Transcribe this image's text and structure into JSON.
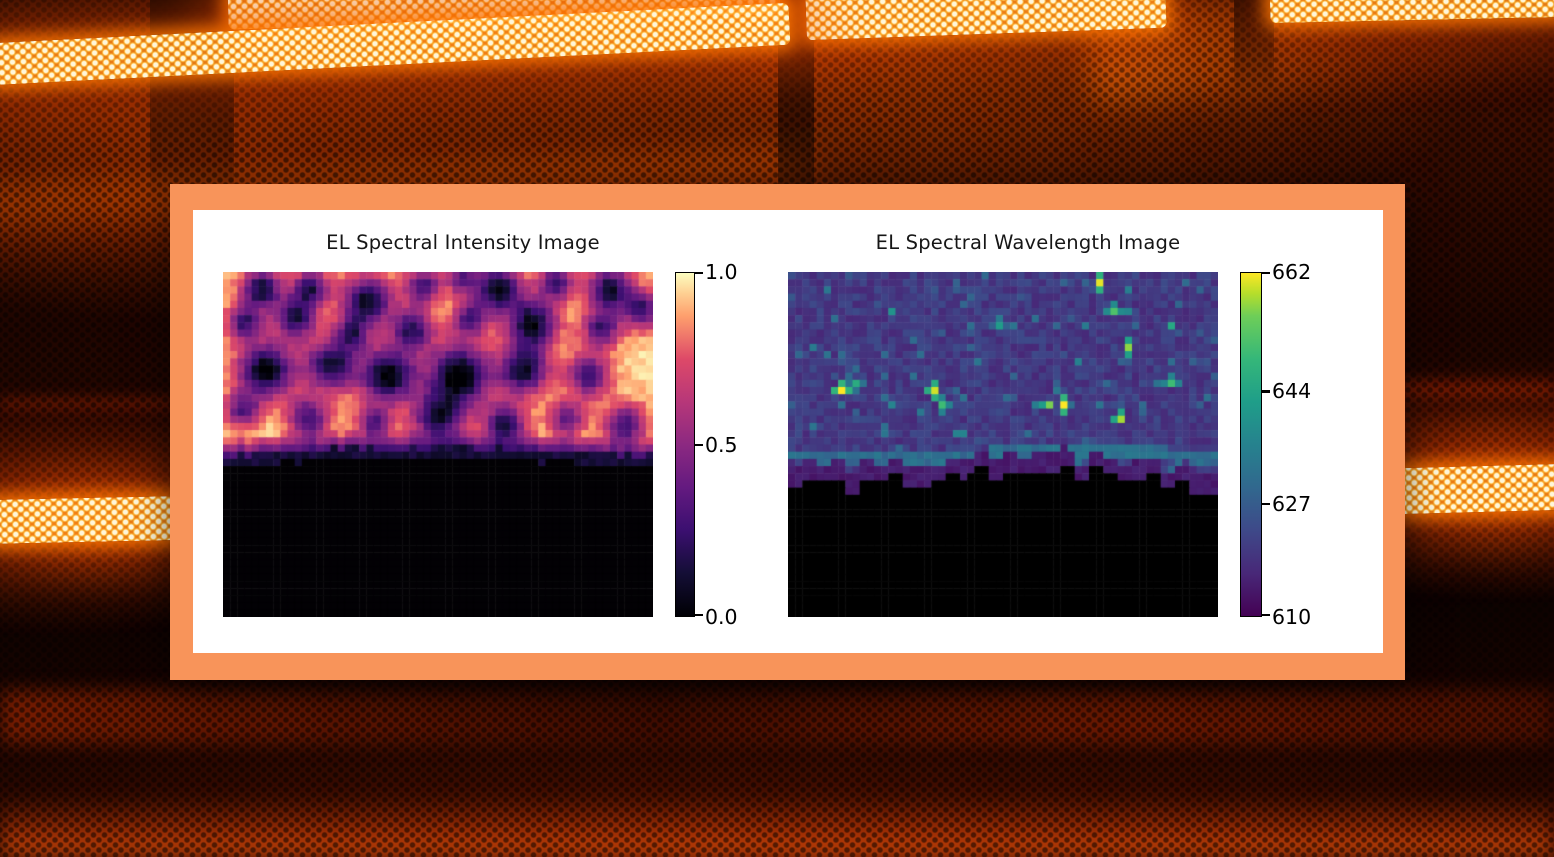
{
  "panel": {
    "frame_color": "#f8945a",
    "background_color": "#ffffff"
  },
  "figure": {
    "title_color": "#161616",
    "tick_label_color": "#000000"
  },
  "background": {
    "base_color": "#160300",
    "glow_color": "#ff6a00",
    "hot_core_color": "#fff6da",
    "dim_red_color": "#8a1a00"
  },
  "colormaps": {
    "magma": [
      [
        0,
        "#000004"
      ],
      [
        0.125,
        "#140e36"
      ],
      [
        0.25,
        "#3b0f70"
      ],
      [
        0.375,
        "#641a80"
      ],
      [
        0.5,
        "#8c2981"
      ],
      [
        0.625,
        "#b73779"
      ],
      [
        0.75,
        "#de4968"
      ],
      [
        0.875,
        "#fe9f6d"
      ],
      [
        0.94,
        "#fecf92"
      ],
      [
        1,
        "#fcfdbf"
      ]
    ],
    "viridis": [
      [
        0,
        "#440154"
      ],
      [
        0.125,
        "#482878"
      ],
      [
        0.25,
        "#3e4989"
      ],
      [
        0.375,
        "#31688e"
      ],
      [
        0.5,
        "#26828e"
      ],
      [
        0.625,
        "#1f9e89"
      ],
      [
        0.75,
        "#35b779"
      ],
      [
        0.875,
        "#6ece58"
      ],
      [
        0.94,
        "#b5de2b"
      ],
      [
        1,
        "#fde725"
      ]
    ]
  },
  "chart_data": [
    {
      "type": "heatmap",
      "title": "EL Spectral Intensity Image",
      "colormap": "magma",
      "vmin": 0.0,
      "vmax": 1.0,
      "colorbar": {
        "ticks": [
          {
            "label": "1.0",
            "value": 1.0
          },
          {
            "label": "0.5",
            "value": 0.5
          },
          {
            "label": "0.0",
            "value": 0.0
          }
        ]
      },
      "grid": {
        "cols": 60,
        "rows": 48
      },
      "seed": 11,
      "base": 0.94,
      "noise": 0.05,
      "fade_zone": 0.055,
      "under_band": {
        "zone": 0.032,
        "value": 0.13
      },
      "boundary": {
        "type": "wavy",
        "base": 0.525,
        "amp": 0.018
      },
      "masked_color": "#020104",
      "dark_blobs": [
        {
          "x": 0.09,
          "y": 0.05,
          "r": 0.032,
          "d": 0.85
        },
        {
          "x": 0.205,
          "y": 0.045,
          "r": 0.028,
          "d": 0.75
        },
        {
          "x": 0.335,
          "y": 0.085,
          "r": 0.04,
          "d": 0.9
        },
        {
          "x": 0.465,
          "y": 0.04,
          "r": 0.028,
          "d": 0.7
        },
        {
          "x": 0.555,
          "y": 0.02,
          "r": 0.024,
          "d": 0.6
        },
        {
          "x": 0.64,
          "y": 0.05,
          "r": 0.038,
          "d": 0.9
        },
        {
          "x": 0.775,
          "y": 0.03,
          "r": 0.028,
          "d": 0.7
        },
        {
          "x": 0.9,
          "y": 0.05,
          "r": 0.035,
          "d": 0.85
        },
        {
          "x": 0.975,
          "y": 0.11,
          "r": 0.03,
          "d": 0.7
        },
        {
          "x": 0.05,
          "y": 0.145,
          "r": 0.028,
          "d": 0.7
        },
        {
          "x": 0.17,
          "y": 0.13,
          "r": 0.034,
          "d": 0.8
        },
        {
          "x": 0.3,
          "y": 0.18,
          "r": 0.028,
          "d": 0.6
        },
        {
          "x": 0.44,
          "y": 0.165,
          "r": 0.034,
          "d": 0.75
        },
        {
          "x": 0.575,
          "y": 0.135,
          "r": 0.028,
          "d": 0.65
        },
        {
          "x": 0.72,
          "y": 0.15,
          "r": 0.04,
          "d": 0.9
        },
        {
          "x": 0.88,
          "y": 0.165,
          "r": 0.03,
          "d": 0.7
        },
        {
          "x": 0.1,
          "y": 0.285,
          "r": 0.045,
          "d": 0.95
        },
        {
          "x": 0.25,
          "y": 0.27,
          "r": 0.04,
          "d": 0.85
        },
        {
          "x": 0.385,
          "y": 0.3,
          "r": 0.045,
          "d": 0.95
        },
        {
          "x": 0.55,
          "y": 0.3,
          "r": 0.05,
          "d": 1.0
        },
        {
          "x": 0.7,
          "y": 0.285,
          "r": 0.04,
          "d": 0.85
        },
        {
          "x": 0.85,
          "y": 0.3,
          "r": 0.034,
          "d": 0.7
        },
        {
          "x": 0.045,
          "y": 0.4,
          "r": 0.028,
          "d": 0.6
        },
        {
          "x": 0.2,
          "y": 0.425,
          "r": 0.034,
          "d": 0.7
        },
        {
          "x": 0.35,
          "y": 0.44,
          "r": 0.028,
          "d": 0.6
        },
        {
          "x": 0.5,
          "y": 0.425,
          "r": 0.04,
          "d": 0.8
        },
        {
          "x": 0.655,
          "y": 0.445,
          "r": 0.034,
          "d": 0.8
        },
        {
          "x": 0.8,
          "y": 0.425,
          "r": 0.028,
          "d": 0.6
        },
        {
          "x": 0.935,
          "y": 0.445,
          "r": 0.034,
          "d": 0.7
        }
      ]
    },
    {
      "type": "heatmap",
      "title": "EL Spectral Wavelength Image",
      "colormap": "viridis",
      "vmin": 610,
      "vmax": 662,
      "colorbar": {
        "ticks": [
          {
            "label": "662",
            "value": 662
          },
          {
            "label": "644",
            "value": 644
          },
          {
            "label": "627",
            "value": 627
          },
          {
            "label": "610",
            "value": 610
          }
        ]
      },
      "grid": {
        "cols": 60,
        "rows": 48
      },
      "seed": 47,
      "base": 620,
      "noise": 3.5,
      "speckle": {
        "threshold": 0.93,
        "boost": 9
      },
      "band": {
        "y": 0.53,
        "wave": 0.015,
        "half": 0.018,
        "value": 631
      },
      "edge_set": {
        "zone": 0.05,
        "value": 613,
        "spread": 3
      },
      "boundary": {
        "type": "steps",
        "base": 0.625,
        "dip": 0.05,
        "jitter": 0.05
      },
      "masked_color": "#000000",
      "bright_spots": [
        {
          "x": 0.72,
          "y": 0.02,
          "v": 661
        },
        {
          "x": 0.745,
          "y": 0.105,
          "v": 652
        },
        {
          "x": 0.78,
          "y": 0.205,
          "v": 657
        },
        {
          "x": 0.115,
          "y": 0.335,
          "v": 662
        },
        {
          "x": 0.145,
          "y": 0.315,
          "v": 646
        },
        {
          "x": 0.335,
          "y": 0.335,
          "v": 660
        },
        {
          "x": 0.345,
          "y": 0.385,
          "v": 650
        },
        {
          "x": 0.595,
          "y": 0.365,
          "v": 656
        },
        {
          "x": 0.625,
          "y": 0.375,
          "v": 662
        },
        {
          "x": 0.765,
          "y": 0.415,
          "v": 658
        },
        {
          "x": 0.885,
          "y": 0.145,
          "v": 645
        },
        {
          "x": 0.475,
          "y": 0.145,
          "v": 642
        },
        {
          "x": 0.885,
          "y": 0.305,
          "v": 650
        },
        {
          "x": 0.24,
          "y": 0.1,
          "v": 640
        }
      ]
    }
  ]
}
